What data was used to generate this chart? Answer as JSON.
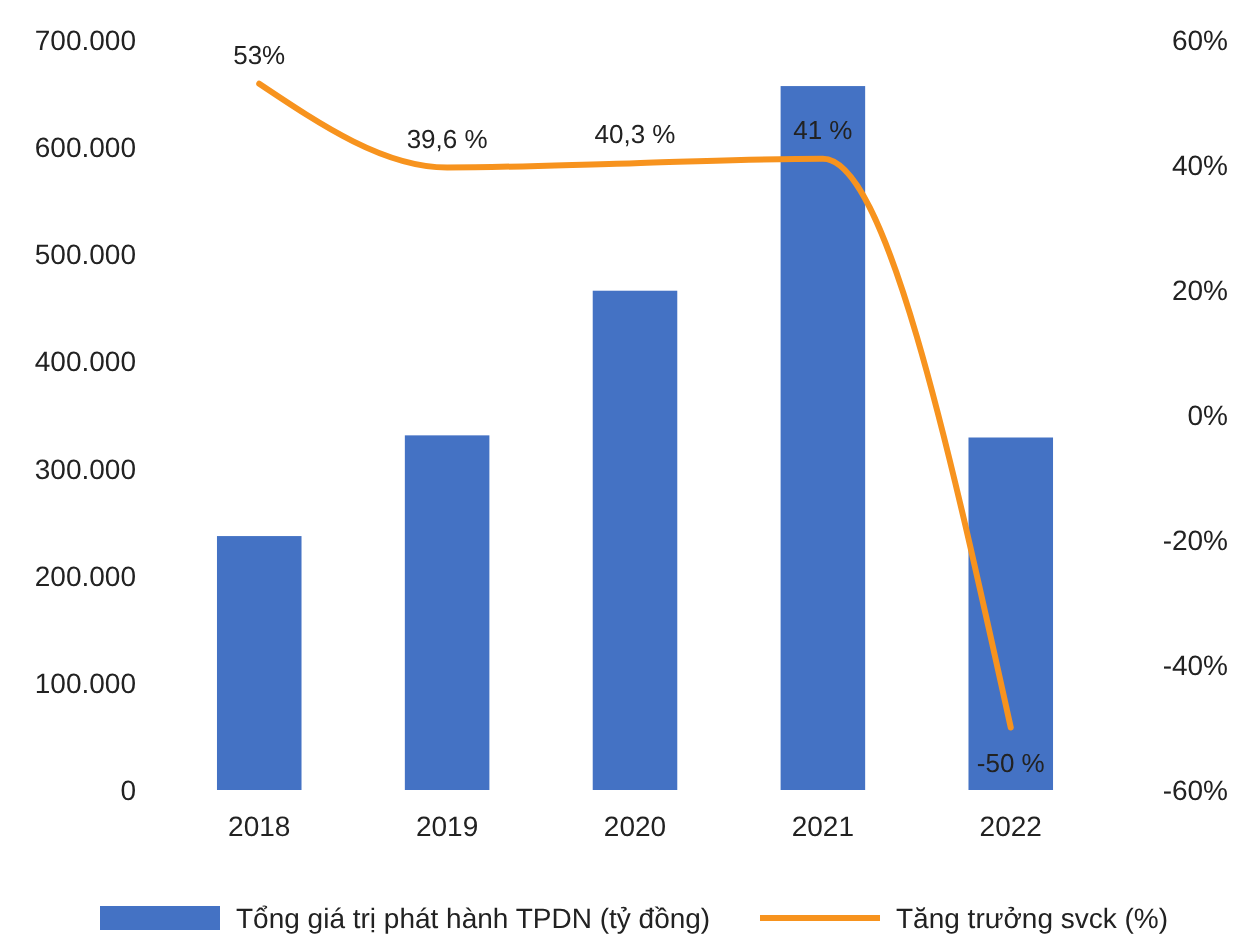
{
  "chart_data": {
    "type": "bar",
    "categories": [
      "2018",
      "2019",
      "2020",
      "2021",
      "2022"
    ],
    "series": [
      {
        "name": "Tổng giá trị phát hành TPDN (tỷ đồng)",
        "color": "#4472c4",
        "values": [
          237000,
          331000,
          466000,
          657000,
          329000
        ]
      },
      {
        "name": "Tăng trưởng svck (%)",
        "type": "line",
        "axis": "y2",
        "color": "#f7931e",
        "values": [
          53,
          39.6,
          40.3,
          41,
          -50
        ],
        "value_labels": [
          "53%",
          "39,6 %",
          "40,3 %",
          "41 %",
          "-50 %"
        ]
      }
    ],
    "ylim": [
      0,
      700000
    ],
    "yticks": [
      {
        "value": 0,
        "label": "0"
      },
      {
        "value": 100000,
        "label": "100.000"
      },
      {
        "value": 200000,
        "label": "200.000"
      },
      {
        "value": 300000,
        "label": "300.000"
      },
      {
        "value": 400000,
        "label": "400.000"
      },
      {
        "value": 500000,
        "label": "500.000"
      },
      {
        "value": 600000,
        "label": "600.000"
      },
      {
        "value": 700000,
        "label": "700.000"
      }
    ],
    "y2lim": [
      -60,
      60
    ],
    "y2ticks": [
      {
        "value": -60,
        "label": "-60%"
      },
      {
        "value": -40,
        "label": "-40%"
      },
      {
        "value": -20,
        "label": "-20%"
      },
      {
        "value": 0,
        "label": "0%"
      },
      {
        "value": 20,
        "label": "20%"
      },
      {
        "value": 40,
        "label": "40%"
      },
      {
        "value": 60,
        "label": "60%"
      }
    ],
    "legend": "bottom",
    "grid": false,
    "marker": "none",
    "line_style": "solid"
  }
}
